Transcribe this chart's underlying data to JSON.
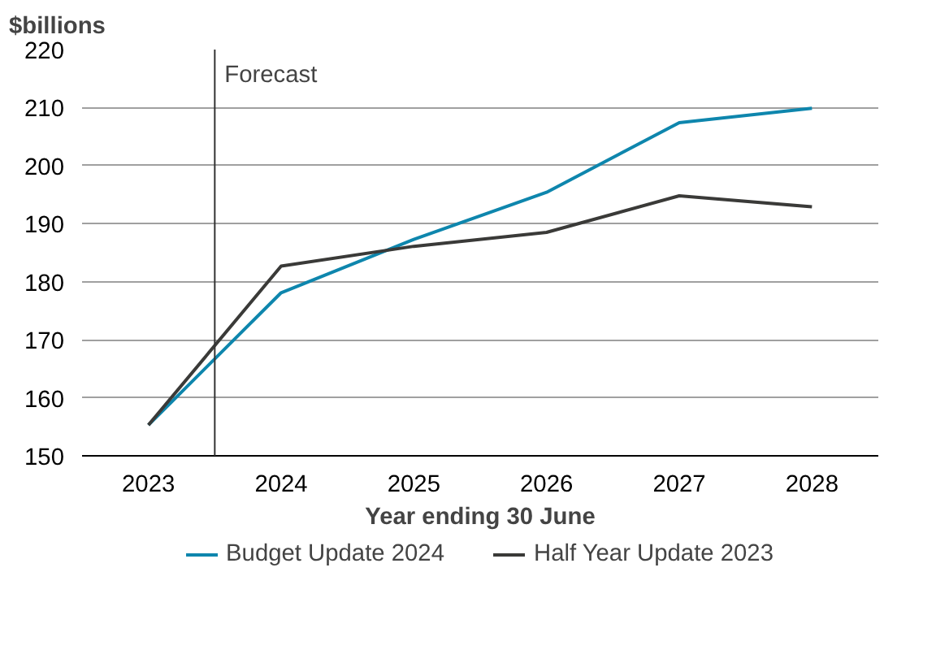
{
  "chart_data": {
    "type": "line",
    "ylabel": "$billions",
    "xlabel": "Year ending 30 June",
    "x": [
      2023,
      2024,
      2025,
      2026,
      2027,
      2028
    ],
    "xlim": [
      2022.5,
      2028.5
    ],
    "xticks": [
      2023,
      2024,
      2025,
      2026,
      2027,
      2028
    ],
    "ylim": [
      150,
      220
    ],
    "yticks": [
      150,
      160,
      170,
      180,
      190,
      200,
      210,
      220
    ],
    "series": [
      {
        "name": "Budget Update 2024",
        "color": "#0e86ad",
        "values": [
          155.3,
          178.1,
          187.3,
          195.4,
          207.4,
          209.9
        ]
      },
      {
        "name": "Half Year Update 2023",
        "color": "#3a3a38",
        "values": [
          155.3,
          182.7,
          186.1,
          188.5,
          194.8,
          192.9
        ]
      }
    ],
    "ref_lines": [
      {
        "axis": "x",
        "value": 2023.5,
        "label": "Forecast",
        "color": "#333333"
      }
    ],
    "grid": "y",
    "legend": "bottom",
    "marker": "none",
    "line_style": "solid"
  }
}
